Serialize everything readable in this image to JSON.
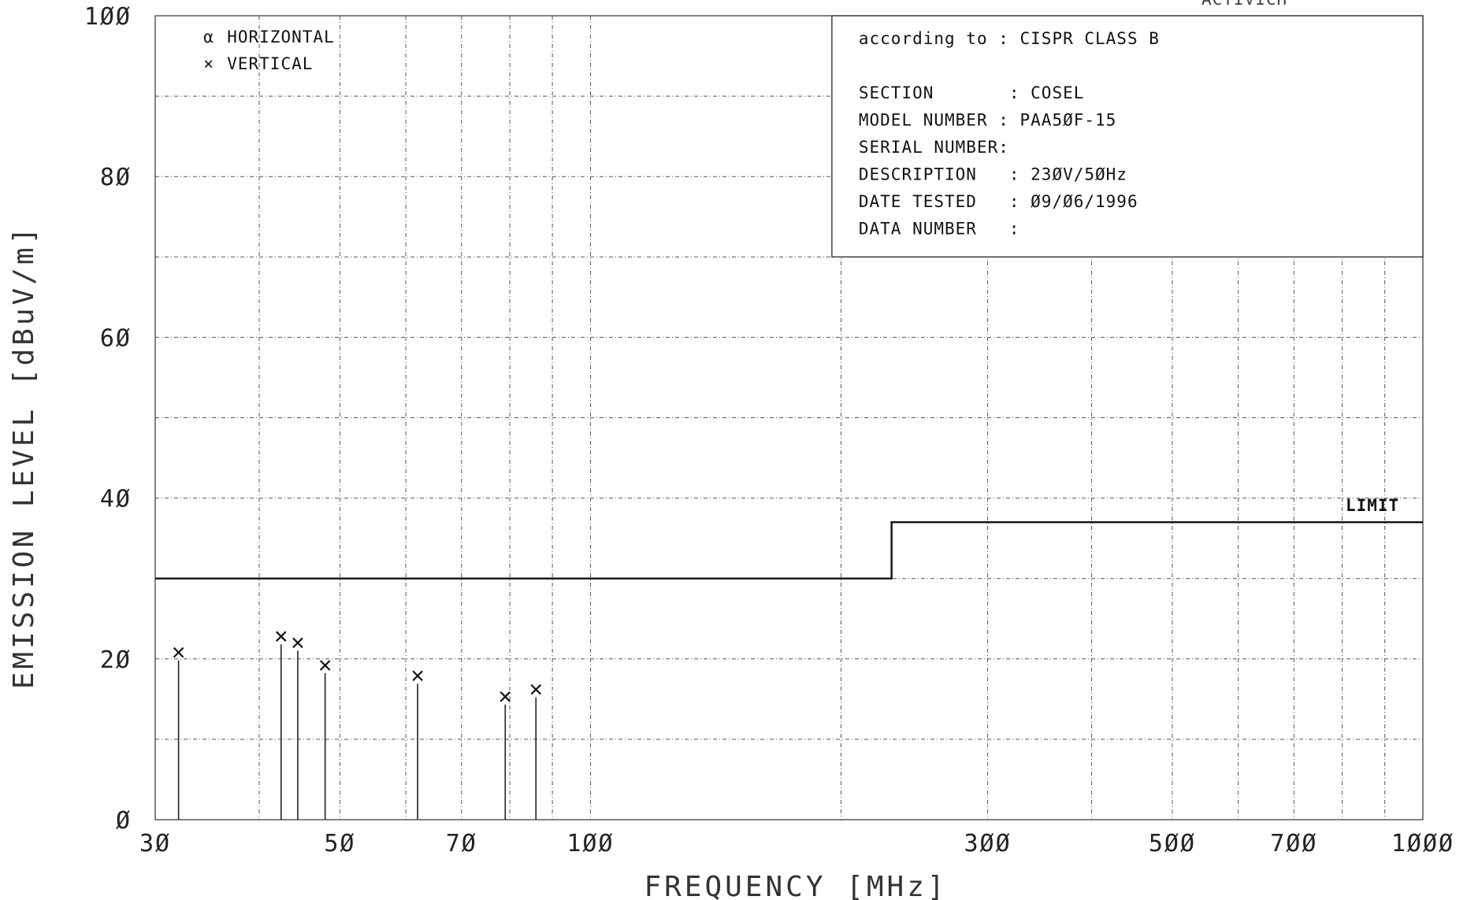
{
  "chart_data": {
    "type": "scatter",
    "xlabel": "FREQUENCY [MHz]",
    "ylabel": "EMISSION LEVEL [dBuV/m]",
    "x_scale": "log",
    "xlim": [
      30,
      1000
    ],
    "ylim": [
      0,
      100
    ],
    "x_ticks": [
      30,
      50,
      70,
      100,
      300,
      500,
      700,
      1000
    ],
    "x_tick_labels": [
      "3Ø",
      "5Ø",
      "7Ø",
      "1ØØ",
      "3ØØ",
      "5ØØ",
      "7ØØ",
      "1ØØØ"
    ],
    "y_ticks": [
      0,
      20,
      40,
      60,
      80,
      100
    ],
    "y_tick_labels": [
      "Ø",
      "2Ø",
      "4Ø",
      "6Ø",
      "8Ø",
      "1ØØ"
    ],
    "grid": true,
    "legend_position": "top-left",
    "legend": [
      {
        "symbol": "α",
        "label": "HORIZONTAL"
      },
      {
        "symbol": "×",
        "label": "VERTICAL"
      }
    ],
    "series": [
      {
        "name": "HORIZONTAL",
        "x": [],
        "y": []
      },
      {
        "name": "VERTICAL",
        "x": [
          32,
          42.5,
          44.5,
          48,
          62,
          79,
          86
        ],
        "y": [
          20.8,
          22.8,
          22.0,
          19.2,
          17.9,
          15.3,
          16.2
        ]
      }
    ],
    "limit": {
      "label": "LIMIT",
      "segments": [
        {
          "x_from": 30,
          "x_to": 230,
          "y": 30
        },
        {
          "x_from": 230,
          "x_to": 1000,
          "y": 37
        }
      ]
    }
  },
  "info_box": {
    "lines": [
      "according to : CISPR CLASS B",
      "",
      "SECTION       : COSEL",
      "MODEL NUMBER : PAA5ØF-15",
      "SERIAL NUMBER:",
      "DESCRIPTION   : 23ØV/5ØHz",
      "DATE TESTED   : Ø9/Ø6/1996",
      "DATA NUMBER   :"
    ]
  },
  "corner_text": "ACTIVICH"
}
